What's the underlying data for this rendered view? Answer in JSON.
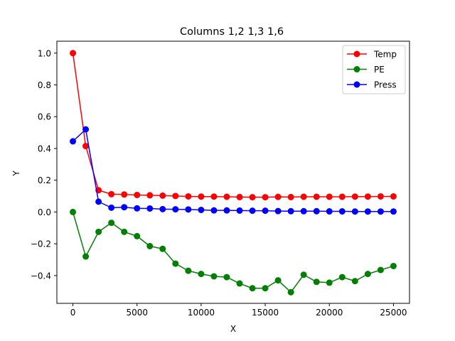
{
  "chart_data": {
    "type": "line",
    "title": "Columns 1,2 1,3 1,6",
    "xlabel": "X",
    "ylabel": "Y",
    "xlim": [
      -1250,
      26250
    ],
    "ylim": [
      -0.575,
      1.075
    ],
    "xticks": [
      0,
      5000,
      10000,
      15000,
      20000,
      25000
    ],
    "xtick_labels": [
      "0",
      "5000",
      "10000",
      "15000",
      "20000",
      "25000"
    ],
    "yticks": [
      -0.4,
      -0.2,
      0.0,
      0.2,
      0.4,
      0.6,
      0.8,
      1.0
    ],
    "ytick_labels": [
      "−0.4",
      "−0.2",
      "0.0",
      "0.2",
      "0.4",
      "0.6",
      "0.8",
      "1.0"
    ],
    "grid": false,
    "legend_position": "top-right",
    "x": [
      0,
      1000,
      2000,
      3000,
      4000,
      5000,
      6000,
      7000,
      8000,
      9000,
      10000,
      11000,
      12000,
      13000,
      14000,
      15000,
      16000,
      17000,
      18000,
      19000,
      20000,
      21000,
      22000,
      23000,
      24000,
      25000
    ],
    "series": [
      {
        "name": "Temp",
        "color": "#ff0000",
        "values": [
          1.0,
          0.415,
          0.137,
          0.112,
          0.11,
          0.107,
          0.105,
          0.103,
          0.101,
          0.098,
          0.097,
          0.097,
          0.096,
          0.094,
          0.093,
          0.093,
          0.095,
          0.094,
          0.096,
          0.096,
          0.096,
          0.096,
          0.097,
          0.097,
          0.098,
          0.098
        ]
      },
      {
        "name": "PE",
        "color": "#008000",
        "values": [
          0.0,
          -0.28,
          -0.125,
          -0.068,
          -0.125,
          -0.152,
          -0.215,
          -0.232,
          -0.325,
          -0.37,
          -0.39,
          -0.405,
          -0.41,
          -0.45,
          -0.48,
          -0.48,
          -0.43,
          -0.505,
          -0.395,
          -0.44,
          -0.445,
          -0.41,
          -0.435,
          -0.39,
          -0.365,
          -0.34
        ]
      },
      {
        "name": "Press",
        "color": "#0000ff",
        "values": [
          0.445,
          0.52,
          0.065,
          0.027,
          0.03,
          0.023,
          0.022,
          0.018,
          0.017,
          0.016,
          0.013,
          0.01,
          0.01,
          0.009,
          0.008,
          0.008,
          0.006,
          0.005,
          0.005,
          0.005,
          0.004,
          0.004,
          0.003,
          0.003,
          0.003,
          0.003
        ]
      }
    ]
  }
}
